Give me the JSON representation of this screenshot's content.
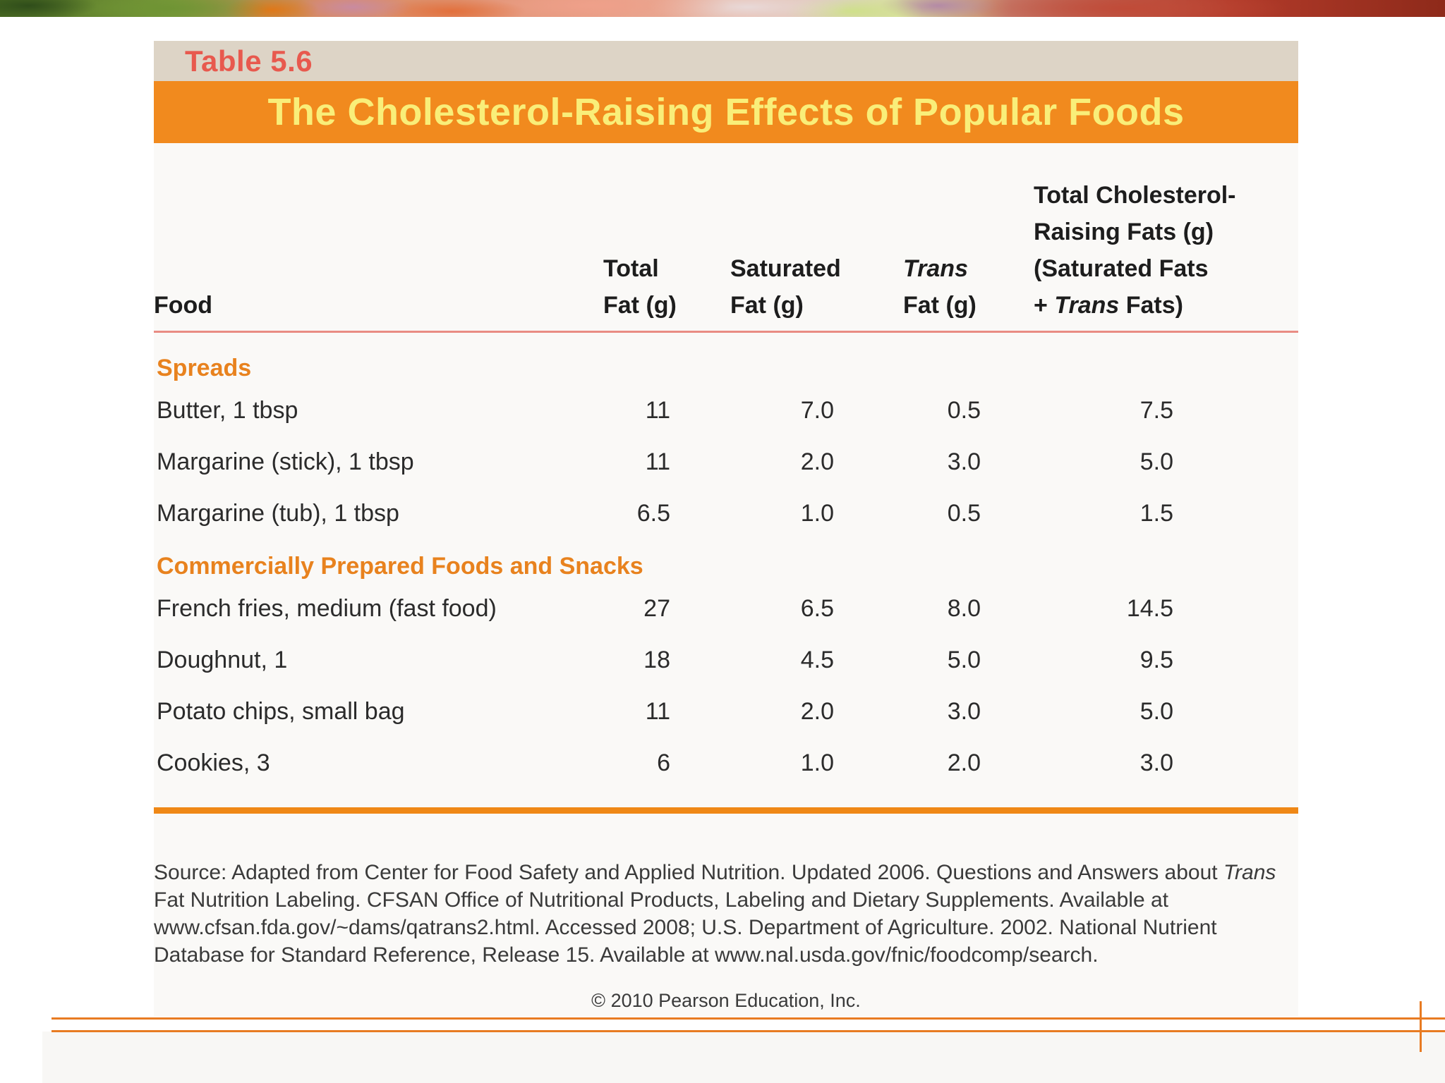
{
  "table": {
    "label": "Table 5.6",
    "title": "The Cholesterol-Raising Effects of Popular Foods",
    "header": {
      "food": "Food",
      "total_fat_line1": "Total",
      "total_fat_line2": "Fat (g)",
      "saturated_line1": "Saturated",
      "saturated_line2": "Fat (g)",
      "trans_line1": "Trans",
      "trans_line2": "Fat (g)",
      "total_crf_line1": "Total Cholesterol-",
      "total_crf_line2": "Raising Fats (g)",
      "total_crf_line3": "(Saturated Fats",
      "total_crf_line4_prefix": "+ ",
      "total_crf_line4_italic": "Trans",
      "total_crf_line4_suffix": " Fats)"
    },
    "sections": [
      {
        "name": "Spreads",
        "rows": [
          {
            "food": "Butter, 1 tbsp",
            "total_fat": "11",
            "saturated_fat": "7.0",
            "trans_fat": "0.5",
            "total_crf": "7.5"
          },
          {
            "food": "Margarine (stick), 1 tbsp",
            "total_fat": "11",
            "saturated_fat": "2.0",
            "trans_fat": "3.0",
            "total_crf": "5.0"
          },
          {
            "food": "Margarine (tub), 1 tbsp",
            "total_fat": "6.5",
            "saturated_fat": "1.0",
            "trans_fat": "0.5",
            "total_crf": "1.5"
          }
        ]
      },
      {
        "name": "Commercially Prepared Foods and Snacks",
        "rows": [
          {
            "food": "French fries, medium (fast food)",
            "total_fat": "27",
            "saturated_fat": "6.5",
            "trans_fat": "8.0",
            "total_crf": "14.5"
          },
          {
            "food": "Doughnut, 1",
            "total_fat": "18",
            "saturated_fat": "4.5",
            "trans_fat": "5.0",
            "total_crf": "9.5"
          },
          {
            "food": "Potato chips, small bag",
            "total_fat": "11",
            "saturated_fat": "2.0",
            "trans_fat": "3.0",
            "total_crf": "5.0"
          },
          {
            "food": "Cookies, 3",
            "total_fat": "6",
            "saturated_fat": "1.0",
            "trans_fat": "2.0",
            "total_crf": "3.0"
          }
        ]
      }
    ]
  },
  "source": {
    "prefix": "Source: Adapted from Center for Food Safety and Applied Nutrition. Updated 2006. Questions and Answers about ",
    "italic_word": "Trans",
    "suffix": " Fat Nutrition Labeling. CFSAN Office of Nutritional Products, Labeling and Dietary Supplements. Available at www.cfsan.fda.gov/~dams/qatrans2.html. Accessed 2008; U.S. Department of Agriculture. 2002. National Nutrient Database for Standard Reference, Release 15. Available at www.nal.usda.gov/fnic/foodcomp/search."
  },
  "footer": {
    "copyright": "© 2010 Pearson Education, Inc."
  },
  "colors": {
    "banner_orange": "#f18a1e",
    "banner_text_yellow": "#f9ee79",
    "label_bar_tan": "#ddd4c6",
    "label_text_salmon": "#e8594e",
    "section_orange": "#e8821e",
    "header_underline_pink": "#e98c84",
    "thick_rule_orange": "#ef8816",
    "bottom_lines_orange": "#e87b22"
  },
  "chart_data": {
    "type": "table",
    "title": "The Cholesterol-Raising Effects of Popular Foods",
    "columns": [
      "Food",
      "Total Fat (g)",
      "Saturated Fat (g)",
      "Trans Fat (g)",
      "Total Cholesterol-Raising Fats (g) (Saturated Fats + Trans Fats)"
    ],
    "sections": [
      {
        "name": "Spreads",
        "rows": [
          [
            "Butter, 1 tbsp",
            11,
            7.0,
            0.5,
            7.5
          ],
          [
            "Margarine (stick), 1 tbsp",
            11,
            2.0,
            3.0,
            5.0
          ],
          [
            "Margarine (tub), 1 tbsp",
            6.5,
            1.0,
            0.5,
            1.5
          ]
        ]
      },
      {
        "name": "Commercially Prepared Foods and Snacks",
        "rows": [
          [
            "French fries, medium (fast food)",
            27,
            6.5,
            8.0,
            14.5
          ],
          [
            "Doughnut, 1",
            18,
            4.5,
            5.0,
            9.5
          ],
          [
            "Potato chips, small bag",
            11,
            2.0,
            3.0,
            5.0
          ],
          [
            "Cookies, 3",
            6,
            1.0,
            2.0,
            3.0
          ]
        ]
      }
    ]
  }
}
